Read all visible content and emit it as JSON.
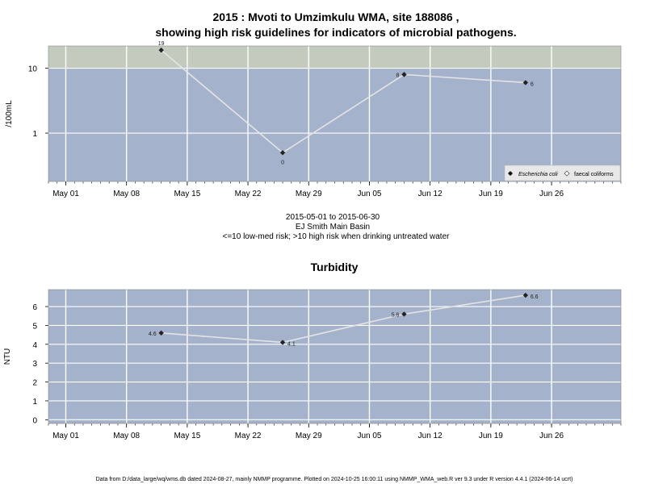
{
  "colors": {
    "panel_bg": "#a4b2cb",
    "high_risk_band": "#c3cbbf",
    "grid": "#ffffff",
    "line": "#e4e4e4",
    "marker": "#222222"
  },
  "title_line1": "2015 : Mvoti to Umzimkulu WMA, site 188086 ,",
  "title_line2": "showing high risk guidelines for indicators of microbial pathogens.",
  "info_line1": "2015-05-01 to 2015-06-30",
  "info_line2": "EJ Smith Main Basin",
  "info_line3": "<=10 low-med risk; >10 high risk when drinking untreated water",
  "footer": "Data from D:/data_large/wq/wms.db dated 2024-08-27, mainly NMMP programme. Plotted on 2024-10-25 16:00:11 using NMMP_WMA_web.R ver 9.3 under R version 4.4.1 (2024-06-14 ucrt)",
  "chart_data": [
    {
      "type": "line",
      "title": "",
      "ylabel": "/100mL",
      "xlabel": "",
      "y_scale": "log",
      "y_ticks": [
        "1",
        "10"
      ],
      "x_ticks": [
        "May 01",
        "May 08",
        "May 15",
        "May 22",
        "May 29",
        "Jun 05",
        "Jun 12",
        "Jun 19",
        "Jun 26"
      ],
      "x_tick_dates": [
        "2015-05-01",
        "2015-05-08",
        "2015-05-15",
        "2015-05-22",
        "2015-05-29",
        "2015-06-05",
        "2015-06-12",
        "2015-06-19",
        "2015-06-26"
      ],
      "xlim": [
        "2015-04-29",
        "2015-07-04"
      ],
      "ylim": [
        0.18,
        22
      ],
      "high_risk_threshold": 10,
      "grid": true,
      "legend": {
        "position": "bottom-right",
        "entries": [
          {
            "label": "Escherichia coli",
            "marker": "filled-diamond"
          },
          {
            "label": "faecal coliforms",
            "marker": "open-diamond"
          }
        ]
      },
      "series": [
        {
          "name": "Escherichia coli",
          "x": [
            "2015-05-12",
            "2015-05-26",
            "2015-06-09",
            "2015-06-23"
          ],
          "y": [
            19,
            0.5,
            8,
            6
          ],
          "labels": [
            "19",
            "0",
            "8",
            "6"
          ]
        }
      ]
    },
    {
      "type": "line",
      "title": "Turbidity",
      "ylabel": "NTU",
      "xlabel": "",
      "y_ticks": [
        "0",
        "1",
        "2",
        "3",
        "4",
        "5",
        "6"
      ],
      "x_ticks": [
        "May 01",
        "May 08",
        "May 15",
        "May 22",
        "May 29",
        "Jun 05",
        "Jun 12",
        "Jun 19",
        "Jun 26"
      ],
      "x_tick_dates": [
        "2015-05-01",
        "2015-05-08",
        "2015-05-15",
        "2015-05-22",
        "2015-05-29",
        "2015-06-05",
        "2015-06-12",
        "2015-06-19",
        "2015-06-26"
      ],
      "xlim": [
        "2015-04-29",
        "2015-07-04"
      ],
      "ylim": [
        -0.2,
        6.9
      ],
      "grid": true,
      "series": [
        {
          "x": [
            "2015-05-12",
            "2015-05-26",
            "2015-06-09",
            "2015-06-23"
          ],
          "y": [
            4.6,
            4.1,
            5.6,
            6.6
          ],
          "labels": [
            "4.6",
            "4.1",
            "5.6",
            "6.6"
          ]
        }
      ]
    }
  ]
}
